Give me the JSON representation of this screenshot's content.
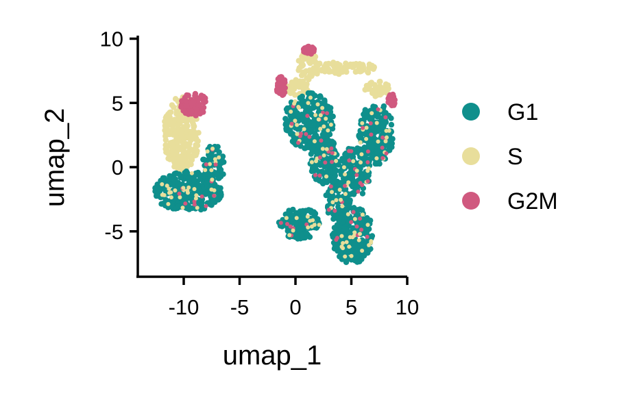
{
  "chart_data": {
    "type": "scatter",
    "title": "",
    "xlabel": "umap_1",
    "ylabel": "umap_2",
    "xlim": [
      -14,
      10
    ],
    "ylim": [
      -8.5,
      10
    ],
    "x_ticks": [
      -10,
      -5,
      0,
      5,
      10
    ],
    "y_ticks": [
      -5,
      0,
      5,
      10
    ],
    "x_tick_labels": [
      "-10",
      "-5",
      "0",
      "5",
      "10"
    ],
    "y_tick_labels": [
      "-5",
      "0",
      "5",
      "10"
    ],
    "grid": false,
    "legend_position": "right",
    "series": [
      {
        "name": "G1",
        "color": "#0F8F8C"
      },
      {
        "name": "S",
        "color": "#E8DE9B"
      },
      {
        "name": "G2M",
        "color": "#D0597F"
      }
    ],
    "clusters": [
      {
        "series": "S",
        "cx": -10.2,
        "cy": 2.6,
        "rx": 1.6,
        "ry": 2.9
      },
      {
        "series": "G2M",
        "cx": -9.1,
        "cy": 4.9,
        "rx": 1.2,
        "ry": 0.9
      },
      {
        "series": "G1",
        "cx": -9.6,
        "cy": -1.9,
        "rx": 3.0,
        "ry": 1.6
      },
      {
        "series": "G1",
        "cx": -7.3,
        "cy": 0.2,
        "rx": 1.0,
        "ry": 1.5
      },
      {
        "series": "S",
        "cx": 1.2,
        "cy": 7.9,
        "rx": 1.0,
        "ry": 1.1
      },
      {
        "series": "S",
        "cx": 0.2,
        "cy": 6.2,
        "rx": 1.0,
        "ry": 0.6
      },
      {
        "series": "S",
        "cx": 4.5,
        "cy": 7.7,
        "rx": 2.8,
        "ry": 0.5
      },
      {
        "series": "S",
        "cx": 7.3,
        "cy": 6.1,
        "rx": 1.1,
        "ry": 0.6
      },
      {
        "series": "G2M",
        "cx": -1.3,
        "cy": 6.3,
        "rx": 0.4,
        "ry": 0.9
      },
      {
        "series": "G2M",
        "cx": 1.2,
        "cy": 9.1,
        "rx": 0.5,
        "ry": 0.3
      },
      {
        "series": "G2M",
        "cx": 8.6,
        "cy": 5.2,
        "rx": 0.3,
        "ry": 0.5
      },
      {
        "series": "G1",
        "cx": 1.2,
        "cy": 3.6,
        "rx": 2.2,
        "ry": 2.2
      },
      {
        "series": "G1",
        "cx": 2.6,
        "cy": 0.5,
        "rx": 1.3,
        "ry": 1.8
      },
      {
        "series": "G1",
        "cx": 7.2,
        "cy": 2.6,
        "rx": 1.6,
        "ry": 2.4
      },
      {
        "series": "G1",
        "cx": 5.3,
        "cy": -0.4,
        "rx": 1.4,
        "ry": 2.0
      },
      {
        "series": "G1",
        "cx": 5.1,
        "cy": -5.3,
        "rx": 1.9,
        "ry": 2.2
      },
      {
        "series": "G1",
        "cx": 3.8,
        "cy": -2.6,
        "rx": 1.1,
        "ry": 1.6
      },
      {
        "series": "G1",
        "cx": 0.4,
        "cy": -4.4,
        "rx": 1.9,
        "ry": 1.2
      }
    ]
  },
  "legend": {
    "items": [
      {
        "label": "G1",
        "color": "#0F8F8C"
      },
      {
        "label": "S",
        "color": "#E8DE9B"
      },
      {
        "label": "G2M",
        "color": "#D0597F"
      }
    ]
  }
}
